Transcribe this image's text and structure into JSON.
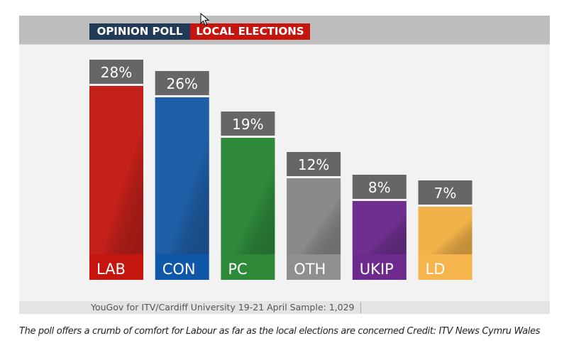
{
  "header": {
    "tag_left": "OPINION POLL",
    "tag_right": "LOCAL ELECTIONS",
    "tag_left_color": "#213a57",
    "tag_right_color": "#c4150f"
  },
  "chart_data": {
    "type": "bar",
    "title": "OPINION POLL LOCAL ELECTIONS",
    "xlabel": "",
    "ylabel": "",
    "unit": "%",
    "categories": [
      "LAB",
      "CON",
      "PC",
      "OTH",
      "UKIP",
      "LD"
    ],
    "values": [
      28,
      26,
      19,
      12,
      8,
      7
    ],
    "value_labels": [
      "28%",
      "26%",
      "19%",
      "12%",
      "8%",
      "7%"
    ],
    "colors": [
      "#c4201a",
      "#1f5fa8",
      "#2f8a3c",
      "#8a8a8a",
      "#6e2f8e",
      "#f2b24a"
    ],
    "label_colors": [
      "#c4160f",
      "#0f58a8",
      "#2e8a39",
      "#8f8f8f",
      "#6c2b8c",
      "#f5b54c"
    ],
    "ylim": [
      0,
      30
    ],
    "grid": false,
    "legend": "none",
    "source": "YouGov for ITV/Cardiff University 19-21 April Sample: 1,029"
  },
  "caption": "The poll offers a crumb of comfort for Labour as far as the local elections are concerned Credit: ITV News Cymru Wales"
}
